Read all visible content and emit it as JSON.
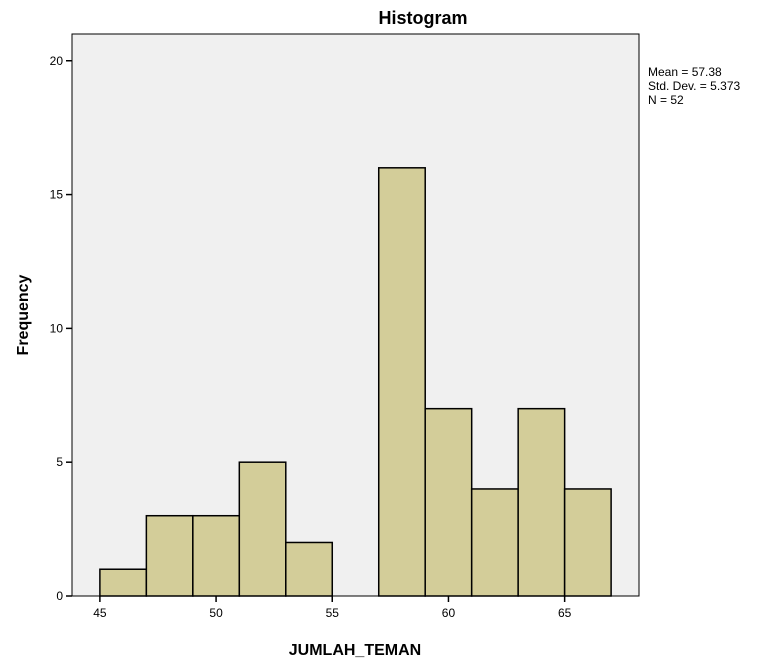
{
  "chart_data": {
    "type": "bar",
    "title": "Histogram",
    "xlabel": "JUMLAH_TEMAN",
    "ylabel": "Frequency",
    "bin_width": 2,
    "bins": [
      {
        "start": 45,
        "end": 47,
        "value": 1
      },
      {
        "start": 47,
        "end": 49,
        "value": 3
      },
      {
        "start": 49,
        "end": 51,
        "value": 3
      },
      {
        "start": 51,
        "end": 53,
        "value": 5
      },
      {
        "start": 53,
        "end": 55,
        "value": 2
      },
      {
        "start": 55,
        "end": 57,
        "value": 0
      },
      {
        "start": 57,
        "end": 59,
        "value": 16
      },
      {
        "start": 59,
        "end": 61,
        "value": 7
      },
      {
        "start": 61,
        "end": 63,
        "value": 4
      },
      {
        "start": 63,
        "end": 65,
        "value": 7
      },
      {
        "start": 65,
        "end": 67,
        "value": 4
      }
    ],
    "xlim": [
      43.8,
      68.2
    ],
    "ylim": [
      0,
      21
    ],
    "x_ticks": [
      "45",
      "50",
      "55",
      "60",
      "65"
    ],
    "y_ticks": [
      "0",
      "5",
      "10",
      "15",
      "20"
    ],
    "grid": false,
    "stats": {
      "mean": "Mean = 57.38",
      "std_dev": "Std. Dev. = 5.373",
      "n": "N = 52"
    },
    "colors": {
      "bar_fill": "#d3cd99",
      "bar_stroke": "#000000",
      "plot_background": "#f0f0f0",
      "frame": "#000000"
    }
  }
}
